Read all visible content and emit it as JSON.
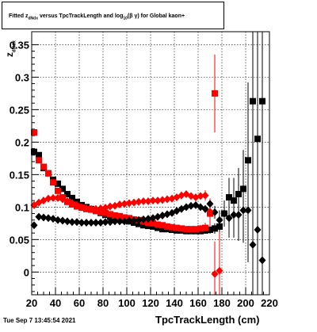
{
  "chart_data": {
    "type": "scatter",
    "title_parts": {
      "a": "Fitted  z",
      "a_sub": "dNdx",
      "b": "  versus TpcTrackLength and log",
      "b_sub": "10",
      "c": "(β γ) for Global kaon+"
    },
    "xlabel": "TpcTrackLength (cm)",
    "ylabel_parts": {
      "main": "z",
      "sub": "dNdx"
    },
    "xlim": [
      20,
      220
    ],
    "ylim": [
      -0.035,
      0.37
    ],
    "grid": true,
    "x_ticks": [
      "20",
      "40",
      "60",
      "80",
      "100",
      "120",
      "140",
      "160",
      "180",
      "200",
      "220"
    ],
    "y_ticks": [
      "0",
      "0.05",
      "0.1",
      "0.15",
      "0.2",
      "0.25",
      "0.3",
      "0.35"
    ],
    "series": [
      {
        "marker": "square",
        "color": "#000000",
        "x": [
          22,
          26,
          30,
          34,
          38,
          42,
          46,
          50,
          54,
          58,
          62,
          66,
          70,
          74,
          78,
          82,
          86,
          90,
          94,
          98,
          102,
          106,
          110,
          114,
          118,
          122,
          126,
          130,
          134,
          138,
          142,
          146,
          150,
          154,
          158,
          162,
          166,
          170,
          174,
          178,
          182,
          186,
          190,
          194,
          198,
          202,
          206,
          210,
          214
        ],
        "y": [
          0.185,
          0.18,
          0.16,
          0.152,
          0.142,
          0.136,
          0.128,
          0.12,
          0.114,
          0.108,
          0.103,
          0.1,
          0.097,
          0.094,
          0.091,
          0.088,
          0.085,
          0.083,
          0.082,
          0.08,
          0.078,
          0.076,
          0.074,
          0.072,
          0.071,
          0.07,
          0.068,
          0.066,
          0.066,
          0.065,
          0.064,
          0.064,
          0.063,
          0.063,
          0.063,
          0.063,
          0.064,
          0.065,
          0.067,
          0.07,
          0.09,
          0.115,
          0.11,
          0.12,
          0.128,
          0.172,
          0.263,
          0.205,
          0.263
        ],
        "err": [
          0.004,
          0.003,
          0.003,
          0.002,
          0.002,
          0.002,
          0.002,
          0.002,
          0.002,
          0.002,
          0.002,
          0.002,
          0.002,
          0.002,
          0.002,
          0.002,
          0.002,
          0.002,
          0.002,
          0.002,
          0.002,
          0.002,
          0.002,
          0.002,
          0.002,
          0.002,
          0.002,
          0.002,
          0.002,
          0.002,
          0.002,
          0.002,
          0.003,
          0.003,
          0.003,
          0.004,
          0.005,
          0.006,
          0.008,
          0.01,
          0.02,
          0.03,
          0.035,
          0.04,
          0.06,
          0.12,
          0.16,
          0.18,
          0.2
        ]
      },
      {
        "marker": "square",
        "color": "#ff0000",
        "x": [
          22,
          26,
          30,
          34,
          38,
          42,
          46,
          50,
          54,
          58,
          62,
          66,
          70,
          74,
          78,
          82,
          86,
          90,
          94,
          98,
          102,
          106,
          110,
          114,
          118,
          122,
          126,
          130,
          134,
          138,
          142,
          146,
          150,
          154,
          158,
          162,
          166,
          170,
          174
        ],
        "y": [
          0.215,
          0.172,
          0.162,
          0.152,
          0.138,
          0.125,
          0.115,
          0.108,
          0.104,
          0.101,
          0.099,
          0.097,
          0.096,
          0.094,
          0.092,
          0.091,
          0.089,
          0.087,
          0.086,
          0.084,
          0.083,
          0.081,
          0.08,
          0.078,
          0.076,
          0.075,
          0.073,
          0.072,
          0.07,
          0.069,
          0.068,
          0.067,
          0.066,
          0.066,
          0.066,
          0.067,
          0.068,
          0.09,
          0.275
        ],
        "err": [
          0.005,
          0.003,
          0.003,
          0.002,
          0.002,
          0.002,
          0.002,
          0.002,
          0.002,
          0.002,
          0.002,
          0.002,
          0.002,
          0.002,
          0.002,
          0.002,
          0.002,
          0.002,
          0.002,
          0.002,
          0.002,
          0.002,
          0.002,
          0.002,
          0.002,
          0.002,
          0.002,
          0.002,
          0.002,
          0.002,
          0.002,
          0.002,
          0.003,
          0.003,
          0.004,
          0.005,
          0.008,
          0.02,
          0.06
        ]
      },
      {
        "marker": "diamond",
        "color": "#000000",
        "x": [
          22,
          26,
          30,
          34,
          38,
          42,
          46,
          50,
          54,
          58,
          62,
          66,
          70,
          74,
          78,
          82,
          86,
          90,
          94,
          98,
          102,
          106,
          110,
          114,
          118,
          122,
          126,
          130,
          134,
          138,
          142,
          146,
          150,
          154,
          158,
          162,
          166,
          170,
          174,
          178,
          182,
          186,
          190,
          194,
          198,
          202,
          206,
          210,
          214
        ],
        "y": [
          0.072,
          0.085,
          0.084,
          0.083,
          0.082,
          0.08,
          0.079,
          0.078,
          0.077,
          0.077,
          0.076,
          0.076,
          0.076,
          0.076,
          0.076,
          0.077,
          0.077,
          0.078,
          0.078,
          0.078,
          0.079,
          0.079,
          0.08,
          0.081,
          0.082,
          0.083,
          0.085,
          0.087,
          0.089,
          0.091,
          0.094,
          0.097,
          0.1,
          0.102,
          0.103,
          0.1,
          0.097,
          0.105,
          0.092,
          0.08,
          0.09,
          0.083,
          0.088,
          0.088,
          0.095,
          0.095,
          0.042,
          0.065,
          0.018
        ],
        "err": [
          0.003,
          0.002,
          0.002,
          0.002,
          0.002,
          0.002,
          0.002,
          0.002,
          0.002,
          0.002,
          0.002,
          0.002,
          0.002,
          0.002,
          0.002,
          0.002,
          0.002,
          0.002,
          0.002,
          0.002,
          0.002,
          0.002,
          0.002,
          0.002,
          0.002,
          0.002,
          0.002,
          0.002,
          0.002,
          0.002,
          0.002,
          0.002,
          0.003,
          0.003,
          0.004,
          0.005,
          0.006,
          0.008,
          0.01,
          0.015,
          0.02,
          0.03,
          0.035,
          0.04,
          0.05,
          0.08,
          0.12,
          0.15,
          0.18
        ]
      },
      {
        "marker": "diamond",
        "color": "#ff0000",
        "x": [
          22,
          26,
          30,
          34,
          38,
          42,
          46,
          50,
          54,
          58,
          62,
          66,
          70,
          74,
          78,
          82,
          86,
          90,
          94,
          98,
          102,
          106,
          110,
          114,
          118,
          122,
          126,
          130,
          134,
          138,
          142,
          146,
          150,
          154,
          158,
          162,
          166,
          170,
          174,
          178
        ],
        "y": [
          0.103,
          0.107,
          0.11,
          0.113,
          0.114,
          0.114,
          0.112,
          0.109,
          0.106,
          0.103,
          0.1,
          0.098,
          0.097,
          0.097,
          0.098,
          0.099,
          0.101,
          0.102,
          0.104,
          0.105,
          0.106,
          0.107,
          0.108,
          0.109,
          0.109,
          0.11,
          0.11,
          0.111,
          0.112,
          0.113,
          0.115,
          0.118,
          0.12,
          0.117,
          0.115,
          0.117,
          0.118,
          0.093,
          -0.003,
          0.002
        ],
        "err": [
          0.004,
          0.003,
          0.002,
          0.002,
          0.002,
          0.002,
          0.002,
          0.002,
          0.002,
          0.002,
          0.002,
          0.002,
          0.002,
          0.002,
          0.002,
          0.002,
          0.002,
          0.002,
          0.002,
          0.002,
          0.002,
          0.002,
          0.002,
          0.002,
          0.002,
          0.002,
          0.002,
          0.002,
          0.002,
          0.002,
          0.002,
          0.002,
          0.003,
          0.003,
          0.004,
          0.005,
          0.008,
          0.02,
          0.05,
          0.06
        ]
      }
    ]
  },
  "footer": {
    "timestamp": "Tue Sep  7 13:45:54 2021"
  }
}
